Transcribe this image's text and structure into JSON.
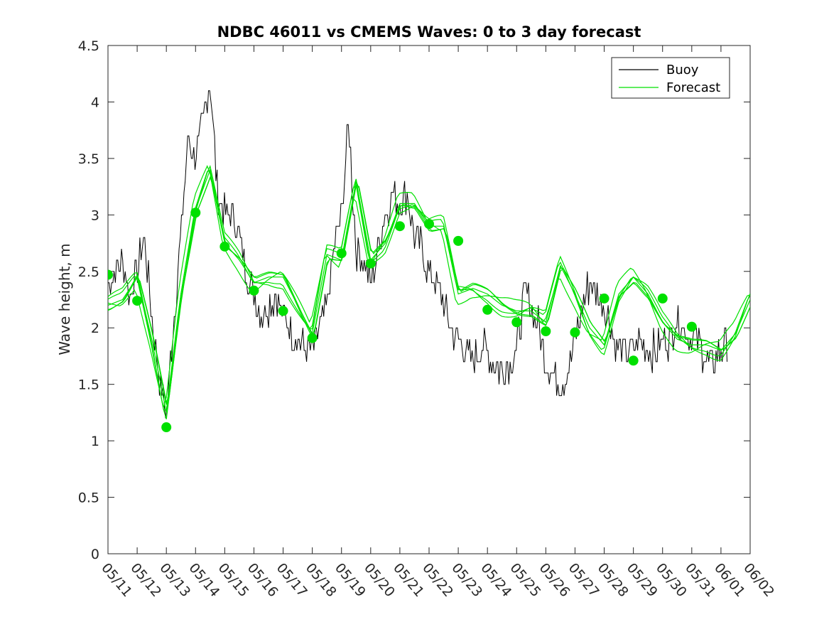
{
  "chart_data": {
    "type": "line",
    "title": "NDBC 46011 vs CMEMS Waves: 0 to 3 day forecast",
    "ylabel": "Wave height, m",
    "xlabel": "",
    "ylim": [
      0,
      4.5
    ],
    "yticks": [
      "0",
      "0.5",
      "1",
      "1.5",
      "2",
      "2.5",
      "3",
      "3.5",
      "4",
      "4.5"
    ],
    "xticks": [
      "05/11",
      "05/12",
      "05/13",
      "05/14",
      "05/15",
      "05/16",
      "05/17",
      "05/18",
      "05/19",
      "05/20",
      "05/21",
      "05/22",
      "05/23",
      "05/24",
      "05/25",
      "05/26",
      "05/27",
      "05/28",
      "05/29",
      "05/30",
      "05/31",
      "06/01",
      "06/02"
    ],
    "grid": false,
    "legend": {
      "position": "top-right",
      "entries": [
        "Buoy",
        "Forecast"
      ]
    },
    "colors": {
      "buoy": "#000000",
      "forecast": "#00e000"
    },
    "series": [
      {
        "name": "Buoy",
        "x": [
          0,
          0.25,
          0.5,
          0.75,
          1,
          1.25,
          1.5,
          1.75,
          2,
          2.25,
          2.5,
          2.75,
          3,
          3.25,
          3.5,
          3.75,
          4,
          4.25,
          4.5,
          4.75,
          5,
          5.25,
          5.5,
          5.75,
          6,
          6.25,
          6.5,
          6.75,
          7,
          7.25,
          7.5,
          7.75,
          8,
          8.25,
          8.5,
          8.75,
          9,
          9.25,
          9.5,
          9.75,
          10,
          10.25,
          10.5,
          10.75,
          11,
          11.25,
          11.5,
          11.75,
          12,
          12.25,
          12.5,
          12.75,
          13,
          13.25,
          13.5,
          13.75,
          14,
          14.25,
          14.5,
          14.75,
          15,
          15.25,
          15.5,
          15.75,
          16,
          16.25,
          16.5,
          16.75,
          17,
          17.25,
          17.5,
          17.75,
          18,
          18.25,
          18.5,
          18.75,
          19,
          19.25,
          19.5,
          19.75,
          20,
          20.25,
          20.5,
          20.75,
          21,
          21.25
        ],
        "values": [
          2.4,
          2.5,
          2.6,
          2.3,
          2.5,
          2.8,
          2.1,
          1.6,
          1.2,
          2.1,
          2.8,
          3.7,
          3.5,
          3.8,
          4.2,
          3.2,
          3.0,
          3.0,
          2.8,
          2.5,
          2.3,
          2.1,
          2.2,
          2.3,
          2.1,
          2.0,
          1.9,
          1.8,
          1.8,
          2.0,
          2.2,
          2.7,
          3.0,
          3.8,
          2.7,
          2.6,
          2.4,
          2.7,
          3.0,
          3.2,
          3.1,
          3.2,
          2.8,
          2.7,
          2.5,
          2.4,
          2.2,
          2.0,
          1.9,
          1.8,
          1.7,
          1.8,
          1.8,
          1.7,
          1.6,
          1.7,
          1.8,
          2.3,
          2.2,
          2.0,
          1.7,
          1.6,
          1.5,
          1.6,
          1.9,
          2.2,
          2.4,
          2.3,
          2.2,
          2.0,
          1.8,
          1.8,
          1.8,
          1.9,
          1.8,
          1.8,
          1.9,
          1.9,
          2.1,
          2.0,
          1.9,
          1.9,
          1.7,
          1.7,
          1.8,
          1.9
        ]
      },
      {
        "name": "Forecast",
        "x": [
          0,
          0.5,
          1,
          1.5,
          2,
          2.5,
          3,
          3.5,
          4,
          4.5,
          5,
          5.5,
          6,
          6.5,
          7,
          7.5,
          8,
          8.5,
          9,
          9.5,
          10,
          10.5,
          11,
          11.5,
          12,
          12.5,
          13,
          13.5,
          14,
          14.5,
          15,
          15.5,
          16,
          16.5,
          17,
          17.5,
          18,
          18.5,
          19,
          19.5,
          20,
          20.5,
          21,
          21.5,
          22
        ],
        "values": [
          2.2,
          2.25,
          2.45,
          1.9,
          1.25,
          2.3,
          3.05,
          3.4,
          2.75,
          2.6,
          2.4,
          2.45,
          2.45,
          2.2,
          1.95,
          2.65,
          2.6,
          3.3,
          2.6,
          2.75,
          3.1,
          3.1,
          2.9,
          2.9,
          2.3,
          2.35,
          2.3,
          2.2,
          2.15,
          2.15,
          2.05,
          2.55,
          2.3,
          2.0,
          1.85,
          2.3,
          2.45,
          2.3,
          2.05,
          1.9,
          1.85,
          1.85,
          1.8,
          1.95,
          2.25
        ]
      },
      {
        "name": "",
        "type": "scatter",
        "x": [
          0,
          1,
          2,
          3,
          4,
          5,
          6,
          7,
          8,
          9,
          10,
          11,
          12,
          13,
          14,
          15,
          16,
          17,
          18,
          19,
          20
        ],
        "values": [
          2.47,
          2.24,
          1.12,
          3.02,
          2.72,
          2.33,
          2.15,
          1.91,
          2.66,
          2.57,
          2.9,
          2.92,
          2.77,
          2.16,
          2.05,
          1.97,
          1.96,
          2.26,
          1.71,
          2.26,
          2.01
        ]
      }
    ]
  }
}
